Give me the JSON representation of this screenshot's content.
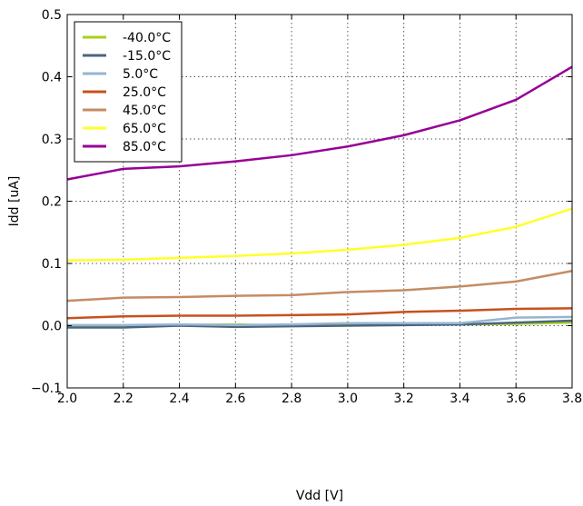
{
  "chart_data": {
    "type": "line",
    "xlabel": "Vdd [V]",
    "ylabel": "Idd [uA]",
    "xlim": [
      2.0,
      3.8
    ],
    "ylim": [
      -0.1,
      0.5
    ],
    "grid": true,
    "legend_position": "top-left",
    "x_ticks": [
      "2.0",
      "2.2",
      "2.4",
      "2.6",
      "2.8",
      "3.0",
      "3.2",
      "3.4",
      "3.6",
      "3.8"
    ],
    "y_ticks": [
      "−0.1",
      "0.0",
      "0.1",
      "0.2",
      "0.3",
      "0.4",
      "0.5"
    ],
    "x": [
      2.0,
      2.2,
      2.4,
      2.6,
      2.8,
      3.0,
      3.2,
      3.4,
      3.6,
      3.8
    ],
    "series": [
      {
        "name": "-40.0°C",
        "color": "#a6d21b",
        "values": [
          -0.002,
          -0.002,
          0.001,
          0.002,
          0.0,
          0.002,
          0.002,
          0.002,
          0.003,
          0.005
        ]
      },
      {
        "name": "-15.0°C",
        "color": "#4a6680",
        "values": [
          -0.003,
          -0.003,
          0.0,
          -0.002,
          -0.001,
          0.0,
          0.001,
          0.002,
          0.005,
          0.008
        ]
      },
      {
        "name": "5.0°C",
        "color": "#96b4d2",
        "values": [
          0.001,
          0.001,
          0.002,
          0.001,
          0.002,
          0.004,
          0.004,
          0.004,
          0.013,
          0.014
        ]
      },
      {
        "name": "25.0°C",
        "color": "#c8501e",
        "values": [
          0.012,
          0.015,
          0.016,
          0.016,
          0.017,
          0.018,
          0.022,
          0.024,
          0.027,
          0.028
        ]
      },
      {
        "name": "45.0°C",
        "color": "#c48c64",
        "values": [
          0.04,
          0.045,
          0.046,
          0.048,
          0.049,
          0.054,
          0.057,
          0.063,
          0.071,
          0.088
        ]
      },
      {
        "name": "65.0°C",
        "color": "#ffff28",
        "values": [
          0.105,
          0.106,
          0.109,
          0.112,
          0.116,
          0.122,
          0.13,
          0.141,
          0.159,
          0.188
        ]
      },
      {
        "name": "85.0°C",
        "color": "#960096",
        "values": [
          0.235,
          0.252,
          0.256,
          0.264,
          0.274,
          0.288,
          0.306,
          0.33,
          0.363,
          0.416
        ]
      }
    ]
  }
}
